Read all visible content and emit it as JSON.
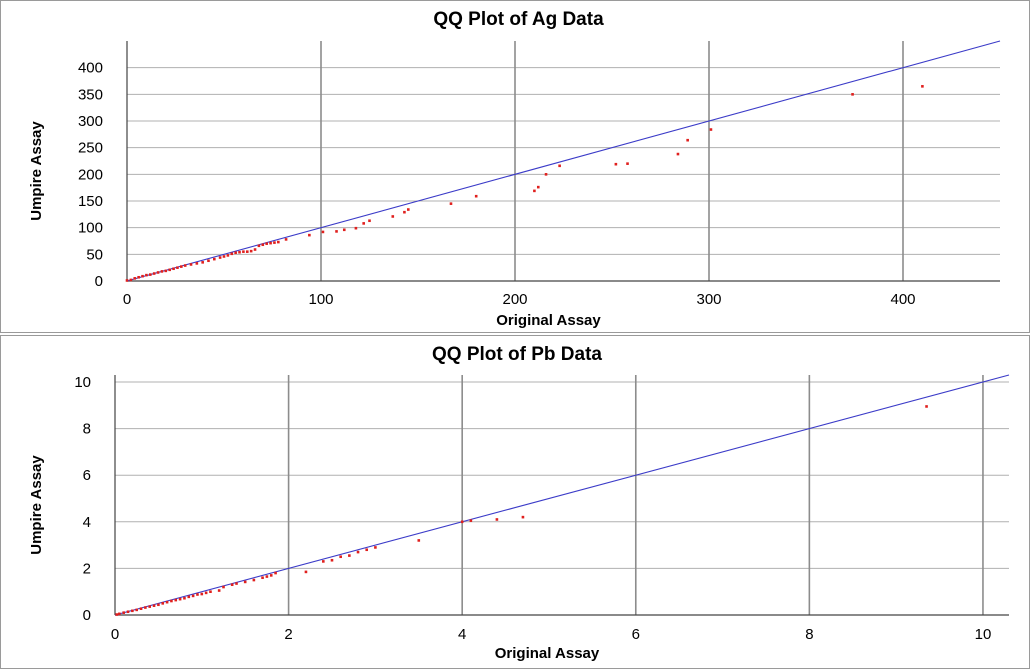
{
  "chart_data": [
    {
      "type": "scatter",
      "title": "QQ Plot of Ag Data",
      "xlabel": "Original Assay",
      "ylabel": "Umpire Assay",
      "xlim": [
        0,
        450
      ],
      "ylim": [
        0,
        450
      ],
      "xticks": [
        0,
        100,
        200,
        300,
        400
      ],
      "yticks": [
        0,
        50,
        100,
        150,
        200,
        250,
        300,
        350,
        400
      ],
      "grid": true,
      "legend": "none",
      "reference_line": {
        "from": [
          0,
          0
        ],
        "to": [
          450,
          450
        ],
        "color": "#3b3bc8"
      },
      "point_color": "#e0201e",
      "series": [
        {
          "x": [
            0,
            2,
            4,
            6,
            8,
            10,
            12,
            14,
            16,
            18,
            20,
            22,
            24,
            26,
            28,
            30,
            33,
            36,
            39,
            42,
            45,
            48,
            50,
            52,
            54,
            56,
            58,
            60,
            62,
            64,
            66,
            68,
            70,
            72,
            74,
            76,
            78,
            82,
            94,
            101,
            108,
            112,
            118,
            122,
            125,
            137,
            143,
            145,
            167,
            180,
            210,
            212,
            216,
            223,
            252,
            258,
            284,
            289,
            301,
            374,
            410
          ],
          "y": [
            1,
            2,
            5,
            7,
            9,
            11,
            12,
            14,
            16,
            18,
            19,
            21,
            23,
            25,
            27,
            29,
            31,
            33,
            35,
            38,
            41,
            44,
            46,
            48,
            51,
            53,
            54,
            55,
            55,
            56,
            59,
            66,
            68,
            70,
            71,
            72,
            73,
            78,
            86,
            92,
            93,
            96,
            99,
            108,
            113,
            121,
            129,
            134,
            145,
            159,
            169,
            176,
            200,
            216,
            219,
            220,
            238,
            264,
            284,
            350,
            365
          ]
        }
      ]
    },
    {
      "type": "scatter",
      "title": "QQ Plot of Pb Data",
      "xlabel": "Original Assay",
      "ylabel": "Umpire Assay",
      "xlim": [
        0,
        10.3
      ],
      "ylim": [
        0,
        10.3
      ],
      "xticks": [
        0,
        2,
        4,
        6,
        8,
        10
      ],
      "yticks": [
        0,
        2,
        4,
        6,
        8,
        10
      ],
      "grid": true,
      "legend": "none",
      "reference_line": {
        "from": [
          0,
          0
        ],
        "to": [
          10.3,
          10.3
        ],
        "color": "#3b3bc8"
      },
      "point_color": "#e0201e",
      "series": [
        {
          "x": [
            0.02,
            0.05,
            0.1,
            0.15,
            0.2,
            0.25,
            0.3,
            0.35,
            0.4,
            0.45,
            0.5,
            0.55,
            0.6,
            0.65,
            0.7,
            0.75,
            0.8,
            0.85,
            0.9,
            0.95,
            1.0,
            1.05,
            1.1,
            1.2,
            1.25,
            1.35,
            1.4,
            1.5,
            1.6,
            1.7,
            1.75,
            1.8,
            1.85,
            2.2,
            2.4,
            2.5,
            2.6,
            2.7,
            2.8,
            2.9,
            3.0,
            3.5,
            4.0,
            4.1,
            4.4,
            4.7,
            9.35
          ],
          "y": [
            0.02,
            0.05,
            0.1,
            0.14,
            0.18,
            0.22,
            0.27,
            0.32,
            0.36,
            0.4,
            0.44,
            0.5,
            0.55,
            0.6,
            0.64,
            0.68,
            0.72,
            0.78,
            0.82,
            0.88,
            0.9,
            0.95,
            1.0,
            1.05,
            1.2,
            1.3,
            1.35,
            1.42,
            1.5,
            1.6,
            1.65,
            1.7,
            1.8,
            1.85,
            2.3,
            2.35,
            2.5,
            2.55,
            2.7,
            2.8,
            2.9,
            3.2,
            4.0,
            4.05,
            4.1,
            4.2,
            8.95
          ]
        }
      ]
    }
  ]
}
